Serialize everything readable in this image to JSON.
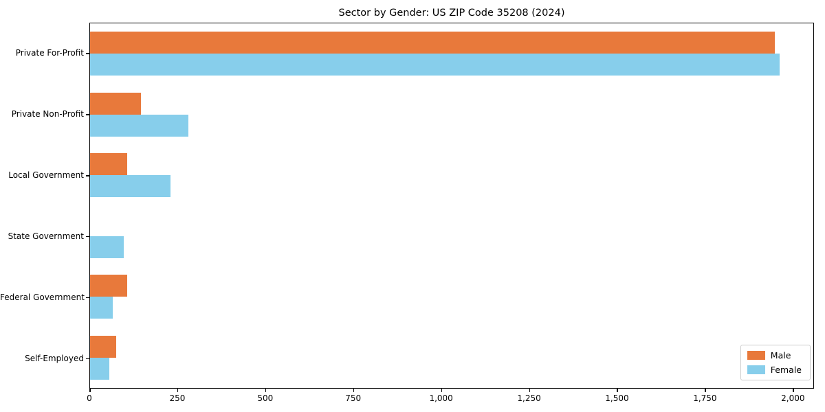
{
  "title": "Sector by Gender: US ZIP Code 35208 (2024)",
  "colors": {
    "male": "#e8793b",
    "female": "#87ceeb",
    "axis": "#000000",
    "legend_border": "#cccccc",
    "background": "#ffffff"
  },
  "legend": {
    "position": "lower right",
    "items": [
      {
        "label": "Male",
        "series": "male"
      },
      {
        "label": "Female",
        "series": "female"
      }
    ]
  },
  "chart_data": {
    "type": "bar",
    "orientation": "horizontal",
    "title": "Sector by Gender: US ZIP Code 35208 (2024)",
    "categories": [
      "Private For-Profit",
      "Private Non-Profit",
      "Local Government",
      "State Government",
      "Federal Government",
      "Self-Employed"
    ],
    "series": [
      {
        "name": "Male",
        "color": "#e8793b",
        "values": [
          1950,
          145,
          105,
          0,
          105,
          74
        ]
      },
      {
        "name": "Female",
        "color": "#87ceeb",
        "values": [
          1965,
          280,
          230,
          95,
          65,
          55
        ]
      }
    ],
    "xlabel": "",
    "ylabel": "",
    "xlim": [
      0,
      2060
    ],
    "grid": false,
    "legend_position": "lower right",
    "x_ticks": [
      {
        "value": 0,
        "label": "0"
      },
      {
        "value": 250,
        "label": "250"
      },
      {
        "value": 500,
        "label": "500"
      },
      {
        "value": 750,
        "label": "750"
      },
      {
        "value": 1000,
        "label": "1,000"
      },
      {
        "value": 1250,
        "label": "1,250"
      },
      {
        "value": 1500,
        "label": "1,500"
      },
      {
        "value": 1750,
        "label": "1,750"
      },
      {
        "value": 2000,
        "label": "2,000"
      }
    ]
  }
}
